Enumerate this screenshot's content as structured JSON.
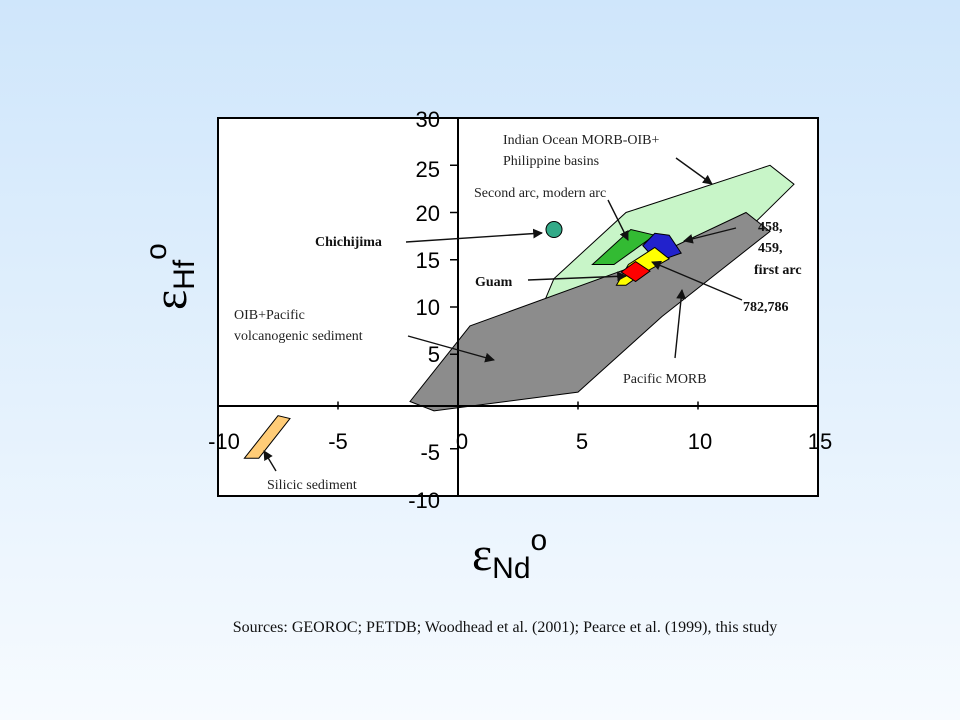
{
  "chart_data": {
    "type": "scatter",
    "xlim": [
      -10,
      15
    ],
    "ylim": [
      -10,
      30
    ],
    "x_ticks": [
      "-10",
      "-5",
      "0",
      "5",
      "10",
      "15"
    ],
    "y_ticks": [
      "30",
      "25",
      "20",
      "15",
      "10",
      "5",
      "-5",
      "-10"
    ],
    "xlabel": {
      "symbol": "ε",
      "sub": "Nd",
      "sup": "o"
    },
    "ylabel": {
      "symbol": "ε",
      "sub": "Hf",
      "sup": "o"
    },
    "fields": [
      {
        "label": "Indian Ocean MORB-OIB+ Philippine basins",
        "color": "#c8f5c8",
        "polygon": [
          [
            4,
            13
          ],
          [
            7,
            20
          ],
          [
            13,
            25
          ],
          [
            14,
            23
          ],
          [
            12,
            18
          ],
          [
            8.5,
            14
          ],
          [
            5,
            9
          ],
          [
            3.5,
            10
          ]
        ]
      },
      {
        "label": "OIB+Pacific volcanogenic sediment",
        "color": "#8c8c8c",
        "polygon": [
          [
            -2,
            0
          ],
          [
            0.5,
            8
          ],
          [
            7,
            14
          ],
          [
            12,
            20
          ],
          [
            13,
            18
          ],
          [
            8.5,
            9
          ],
          [
            5,
            1
          ],
          [
            2,
            0
          ],
          [
            -1,
            -1
          ]
        ]
      },
      {
        "label": "Second arc, modern arc",
        "color": "#33bb33",
        "polygon": [
          [
            5.6,
            14.5
          ],
          [
            7.2,
            18.2
          ],
          [
            8.2,
            17.6
          ],
          [
            6.5,
            14.5
          ]
        ]
      },
      {
        "label": "458, 459, first arc",
        "color": "#2222cc",
        "polygon": [
          [
            7.7,
            16.5
          ],
          [
            8.2,
            17.8
          ],
          [
            8.8,
            17.6
          ],
          [
            9.3,
            15.7
          ],
          [
            8.3,
            14.8
          ]
        ]
      },
      {
        "label": "782,786",
        "color": "#ffff00",
        "polygon": [
          [
            6.6,
            12.3
          ],
          [
            7.1,
            14.5
          ],
          [
            8.2,
            16.3
          ],
          [
            8.8,
            15.1
          ],
          [
            7.6,
            13.4
          ],
          [
            7.0,
            12.3
          ]
        ]
      },
      {
        "label": "Guam",
        "color": "#ff0000",
        "polygon": [
          [
            6.8,
            13.7
          ],
          [
            7.4,
            14.8
          ],
          [
            8.0,
            13.8
          ],
          [
            7.4,
            12.7
          ]
        ]
      },
      {
        "label": "Silicic sediment",
        "color": "#ffcc77",
        "polygon": [
          [
            -8.9,
            -6
          ],
          [
            -7.5,
            -1.5
          ],
          [
            -7.0,
            -1.8
          ],
          [
            -8.3,
            -6
          ]
        ]
      },
      {
        "label": "Chichijima",
        "color": "#33aa88",
        "type": "point",
        "x": 4.0,
        "y": 18.2
      }
    ]
  },
  "annotations": {
    "indian": [
      "Indian Ocean MORB-OIB+",
      "Philippine basins"
    ],
    "second_arc": "Second arc, modern arc",
    "chichijima": "Chichijima",
    "first_arc": [
      "458,",
      "459,",
      "first arc"
    ],
    "guam": "Guam",
    "oib": [
      "OIB+Pacific",
      "volcanogenic sediment"
    ],
    "site_782": "782,786",
    "pacific_morb": "Pacific MORB",
    "silicic": "Silicic sediment"
  },
  "sources": "Sources: GEOROC; PETDB; Woodhead et al. (2001); Pearce et al. (1999), this study"
}
